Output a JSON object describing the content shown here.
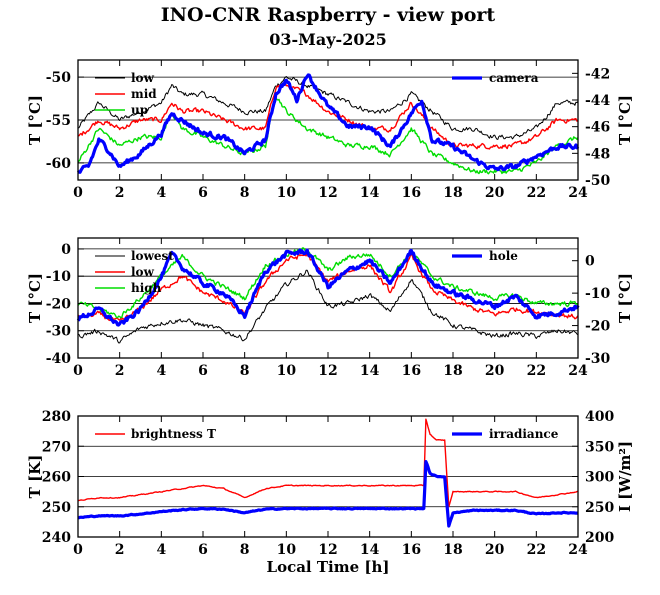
{
  "title": "INO-CNR Raspberry - view port",
  "subtitle": "03-May-2025",
  "xlabel": "Local Time [h]",
  "colors": {
    "black": "#000000",
    "red": "#ff0000",
    "green": "#00dd00",
    "blue": "#0000ff"
  },
  "chart_data": [
    {
      "type": "line",
      "panel": "top",
      "ylabel_left": "T [°C]",
      "ylabel_right": "T [°C]",
      "xlim": [
        0,
        24
      ],
      "ylim_left": [
        -62,
        -48
      ],
      "ylim_right": [
        -50,
        -41
      ],
      "xticks": [
        "0",
        "2",
        "4",
        "6",
        "8",
        "10",
        "12",
        "14",
        "16",
        "18",
        "20",
        "22",
        "24"
      ],
      "yticks_left": [
        "-60",
        "-55",
        "-50"
      ],
      "yticks_right": [
        "-50",
        "-48",
        "-46",
        "-44",
        "-42"
      ],
      "legend_left": [
        "low",
        "mid",
        "up"
      ],
      "legend_right": [
        "camera"
      ],
      "series": [
        {
          "name": "low",
          "axis": "left",
          "color": "#000000",
          "x": [
            0,
            1,
            2,
            3,
            4,
            4.5,
            5,
            6,
            7,
            8,
            9,
            9.5,
            10,
            11,
            12,
            13,
            14,
            15,
            16,
            17,
            18,
            19,
            20,
            21,
            22,
            23,
            24
          ],
          "y": [
            -56,
            -53,
            -55,
            -54,
            -53,
            -51,
            -52,
            -52,
            -53,
            -54,
            -54,
            -51,
            -50,
            -51,
            -52,
            -53,
            -54,
            -54,
            -52,
            -54,
            -56,
            -56,
            -57,
            -57,
            -56,
            -53,
            -53
          ]
        },
        {
          "name": "mid",
          "axis": "left",
          "color": "#ff0000",
          "x": [
            0,
            1,
            2,
            3,
            4,
            4.5,
            5,
            6,
            7,
            8,
            9,
            9.5,
            10,
            11,
            12,
            13,
            14,
            15,
            16,
            17,
            18,
            19,
            20,
            21,
            22,
            23,
            24
          ],
          "y": [
            -57,
            -55,
            -56,
            -55,
            -55,
            -53,
            -54,
            -54,
            -55,
            -56,
            -56,
            -51,
            -51,
            -52,
            -54,
            -55,
            -56,
            -56,
            -53,
            -56,
            -58,
            -58,
            -58,
            -58,
            -57,
            -55,
            -55
          ]
        },
        {
          "name": "up",
          "axis": "left",
          "color": "#00dd00",
          "x": [
            0,
            1,
            2,
            3,
            4,
            4.5,
            5,
            6,
            7,
            8,
            9,
            9.5,
            10,
            11,
            12,
            13,
            14,
            15,
            16,
            17,
            18,
            19,
            20,
            21,
            22,
            23,
            24
          ],
          "y": [
            -60,
            -56,
            -58,
            -57,
            -57,
            -54,
            -56,
            -57,
            -58,
            -59,
            -58,
            -52,
            -54,
            -56,
            -57,
            -58,
            -58,
            -59,
            -56,
            -59,
            -60,
            -61,
            -61,
            -61,
            -60,
            -58,
            -57
          ]
        },
        {
          "name": "camera",
          "axis": "right",
          "color": "#0000ff",
          "x": [
            0,
            0.5,
            1,
            1.5,
            2,
            3,
            4,
            4.5,
            5,
            6,
            7,
            8,
            9,
            9.5,
            10,
            10.5,
            11,
            12,
            13,
            14,
            15,
            16,
            16.5,
            17,
            18,
            19,
            20,
            21,
            22,
            23,
            24
          ],
          "y": [
            -49.5,
            -49,
            -47,
            -47.8,
            -49,
            -48,
            -46.5,
            -45,
            -45.5,
            -46.5,
            -46.8,
            -48,
            -47,
            -43.5,
            -42.5,
            -44,
            -42,
            -44.5,
            -46,
            -46,
            -47.5,
            -45,
            -44,
            -47,
            -47.5,
            -48.5,
            -49.2,
            -49,
            -48.2,
            -47.5,
            -47.5
          ]
        }
      ]
    },
    {
      "type": "line",
      "panel": "middle",
      "ylabel_left": "T [°C]",
      "ylabel_right": "T [°C]",
      "xlim": [
        0,
        24
      ],
      "ylim_left": [
        -40,
        4
      ],
      "ylim_right": [
        -30,
        7
      ],
      "xticks": [
        "0",
        "2",
        "4",
        "6",
        "8",
        "10",
        "12",
        "14",
        "16",
        "18",
        "20",
        "22",
        "24"
      ],
      "yticks_left": [
        "-40",
        "-30",
        "-20",
        "-10",
        "0"
      ],
      "yticks_right": [
        "-30",
        "-20",
        "-10",
        "0"
      ],
      "legend_left": [
        "lowest",
        "low",
        "high"
      ],
      "legend_right": [
        "hole"
      ],
      "series": [
        {
          "name": "lowest",
          "axis": "left",
          "color": "#000000",
          "x": [
            0,
            1,
            2,
            3,
            4,
            5,
            6,
            7,
            8,
            9,
            10,
            11,
            12,
            13,
            14,
            15,
            16,
            17,
            18,
            19,
            20,
            21,
            22,
            23,
            24
          ],
          "y": [
            -32,
            -30,
            -34,
            -29,
            -27,
            -26,
            -28,
            -30,
            -33,
            -22,
            -13,
            -8,
            -21,
            -20,
            -17,
            -23,
            -11,
            -23,
            -28,
            -30,
            -32,
            -31,
            -32,
            -30,
            -31
          ]
        },
        {
          "name": "low",
          "axis": "left",
          "color": "#ff0000",
          "x": [
            0,
            1,
            2,
            3,
            4,
            5,
            6,
            7,
            8,
            9,
            10,
            11,
            12,
            13,
            14,
            15,
            16,
            17,
            18,
            19,
            20,
            21,
            22,
            23,
            24
          ],
          "y": [
            -25,
            -24,
            -27,
            -22,
            -15,
            -10,
            -16,
            -19,
            -24,
            -12,
            -4,
            -2,
            -12,
            -8,
            -6,
            -16,
            -3,
            -15,
            -19,
            -22,
            -24,
            -22,
            -23,
            -24,
            -25
          ]
        },
        {
          "name": "high",
          "axis": "left",
          "color": "#00dd00",
          "x": [
            0,
            1,
            2,
            3,
            4,
            5,
            6,
            7,
            8,
            9,
            10,
            11,
            12,
            13,
            14,
            15,
            16,
            17,
            18,
            19,
            20,
            21,
            22,
            23,
            24
          ],
          "y": [
            -20,
            -22,
            -25,
            -18,
            -10,
            -3,
            -10,
            -14,
            -18,
            -6,
            -2,
            0,
            -8,
            -3,
            -2,
            -10,
            -1,
            -10,
            -14,
            -16,
            -18,
            -17,
            -20,
            -20,
            -20
          ]
        },
        {
          "name": "hole",
          "axis": "right",
          "color": "#0000ff",
          "x": [
            0,
            1,
            2,
            3,
            4,
            4.5,
            5,
            6,
            7,
            8,
            9,
            10,
            11,
            12,
            13,
            14,
            15,
            16,
            17,
            18,
            19,
            20,
            21,
            22,
            23,
            24
          ],
          "y": [
            -18,
            -15,
            -20,
            -15,
            -5,
            2,
            -2,
            -7,
            -10,
            -17,
            -3,
            2,
            3,
            -8,
            -3,
            0,
            -7,
            3,
            -7,
            -10,
            -12,
            -14,
            -11,
            -17,
            -16,
            -14
          ]
        }
      ]
    },
    {
      "type": "line",
      "panel": "bottom",
      "ylabel_left": "T [K]",
      "ylabel_right": "I [W/m²]",
      "xlim": [
        0,
        24
      ],
      "ylim_left": [
        240,
        280
      ],
      "ylim_right": [
        200,
        400
      ],
      "xticks": [
        "0",
        "2",
        "4",
        "6",
        "8",
        "10",
        "12",
        "14",
        "16",
        "18",
        "20",
        "22",
        "24"
      ],
      "yticks_left": [
        "240",
        "250",
        "260",
        "270",
        "280"
      ],
      "yticks_right": [
        "200",
        "250",
        "300",
        "350",
        "400"
      ],
      "legend_left": [
        "brightness T"
      ],
      "legend_right": [
        "irradiance"
      ],
      "series": [
        {
          "name": "brightness T",
          "axis": "left",
          "color": "#ff0000",
          "x": [
            0,
            1,
            2,
            3,
            4,
            5,
            6,
            7,
            8,
            9,
            10,
            11,
            12,
            13,
            14,
            15,
            16,
            16.6,
            16.7,
            16.9,
            17.2,
            17.6,
            17.8,
            18,
            19,
            20,
            21,
            22,
            23,
            24
          ],
          "y": [
            252,
            253,
            253,
            254,
            255,
            256,
            257,
            256,
            253,
            256,
            257,
            257,
            257,
            257,
            257,
            257,
            257,
            257,
            279,
            274,
            272,
            272,
            250,
            255,
            255,
            255,
            255,
            253,
            254,
            255
          ]
        },
        {
          "name": "irradiance",
          "axis": "right",
          "color": "#0000ff",
          "x": [
            0,
            1,
            2,
            3,
            4,
            5,
            6,
            7,
            8,
            9,
            10,
            11,
            12,
            13,
            14,
            15,
            16,
            16.6,
            16.7,
            16.9,
            17.2,
            17.6,
            17.8,
            18,
            19,
            20,
            21,
            22,
            23,
            24
          ],
          "y": [
            232,
            235,
            235,
            238,
            242,
            245,
            247,
            246,
            240,
            246,
            247,
            247,
            247,
            247,
            247,
            247,
            247,
            247,
            325,
            305,
            300,
            300,
            218,
            240,
            244,
            244,
            244,
            238,
            240,
            240
          ]
        }
      ]
    }
  ]
}
